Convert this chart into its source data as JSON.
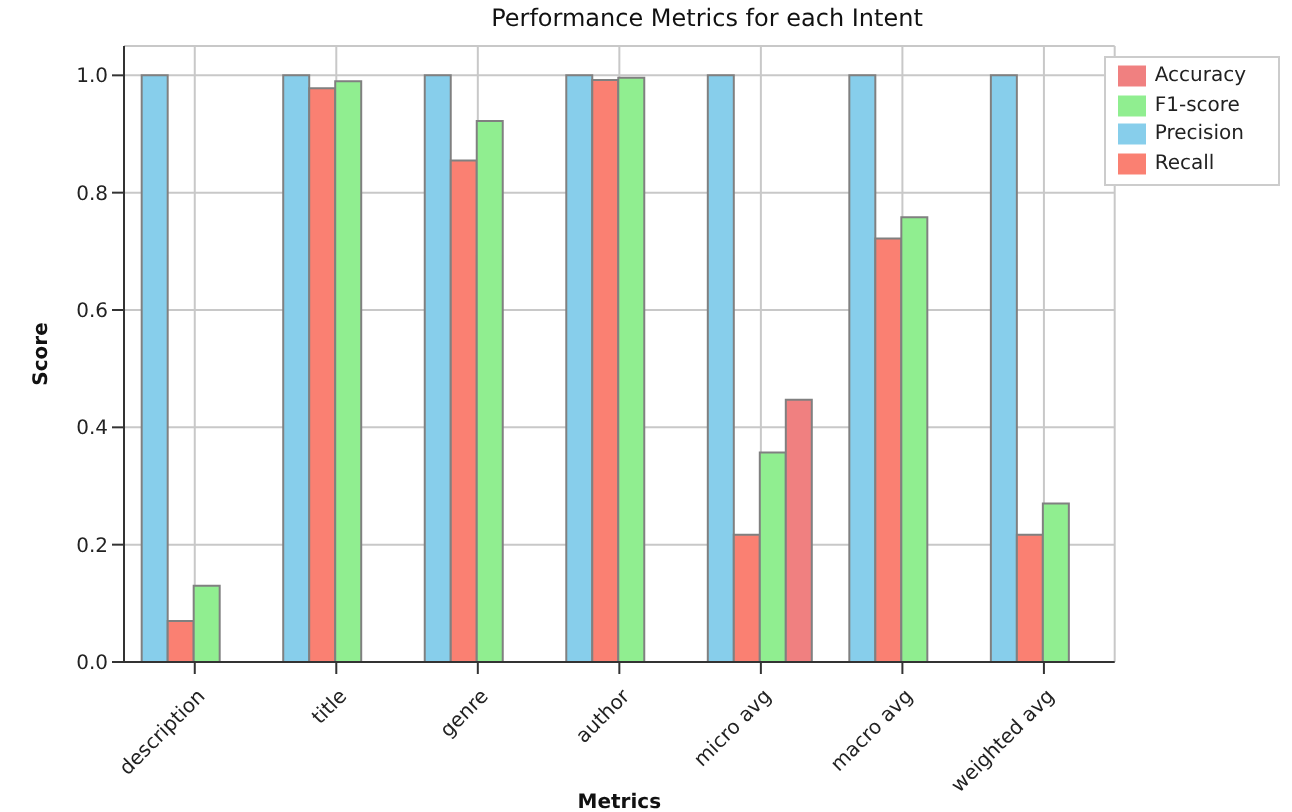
{
  "chart_data": {
    "type": "bar",
    "title": "Performance Metrics for each Intent",
    "xlabel": "Metrics",
    "ylabel": "Score",
    "categories": [
      "description",
      "title",
      "genre",
      "author",
      "micro avg",
      "macro avg",
      "weighted avg"
    ],
    "series": [
      {
        "name": "Precision",
        "color": "#87ceeb",
        "values": [
          1.0,
          1.0,
          1.0,
          1.0,
          1.0,
          1.0,
          1.0
        ]
      },
      {
        "name": "Recall",
        "color": "#fa8072",
        "values": [
          0.07,
          0.978,
          0.855,
          0.992,
          0.217,
          0.722,
          0.217
        ]
      },
      {
        "name": "F1-score",
        "color": "#90ee90",
        "values": [
          0.13,
          0.99,
          0.922,
          0.996,
          0.357,
          0.758,
          0.27
        ]
      },
      {
        "name": "Accuracy",
        "color": "#f08080",
        "values": [
          null,
          null,
          null,
          null,
          0.447,
          null,
          null
        ]
      }
    ],
    "ylim": [
      0,
      1.05
    ],
    "yticks": [
      {
        "value": 0,
        "label": "0.0"
      },
      {
        "value": 0.2,
        "label": "0.2"
      },
      {
        "value": 0.4,
        "label": "0.4"
      },
      {
        "value": 0.6,
        "label": "0.6"
      },
      {
        "value": 0.8,
        "label": "0.8"
      },
      {
        "value": 1,
        "label": "1.0"
      }
    ],
    "grid": true,
    "legend": "top right"
  }
}
